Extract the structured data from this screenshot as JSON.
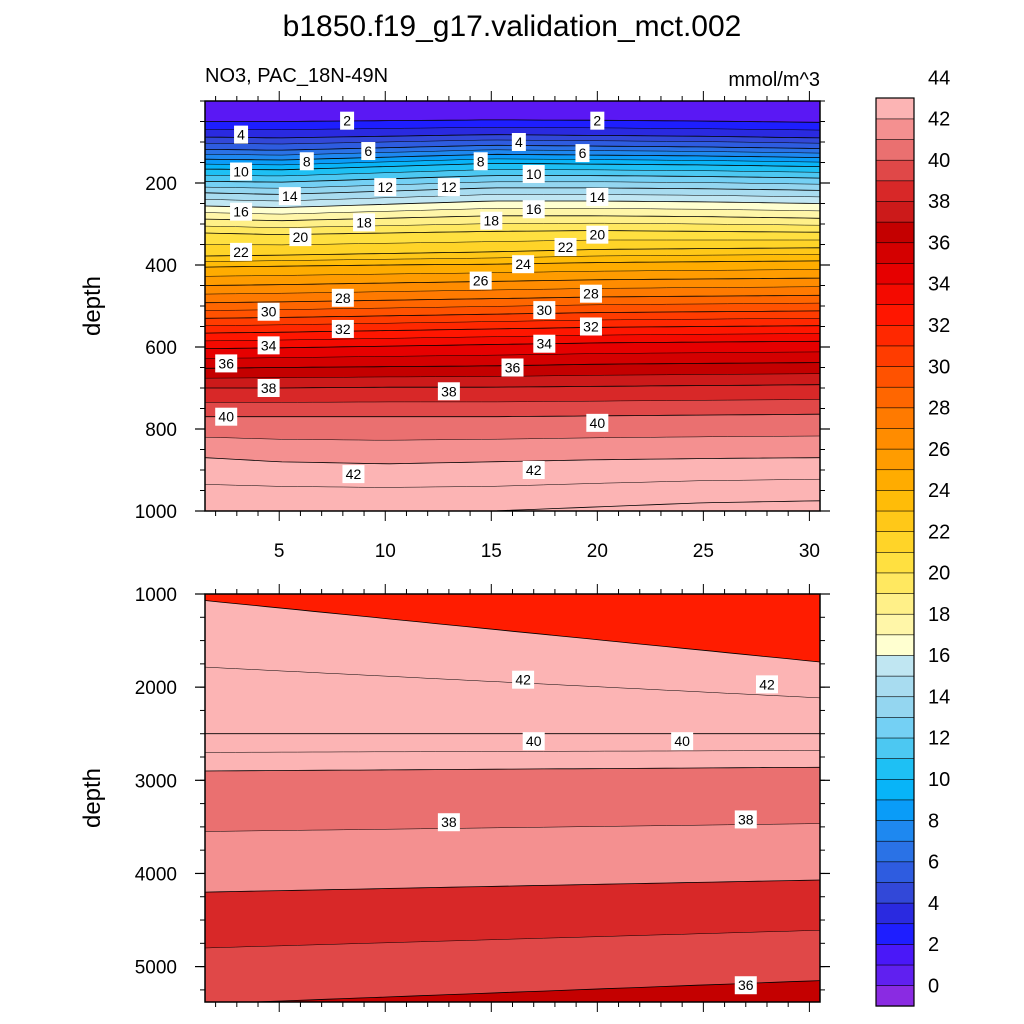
{
  "chart_data": [
    {
      "type": "heatmap",
      "title": "b1850.f19_g17.validation_mct.002",
      "subtitle_left": "NO3, PAC_18N-49N",
      "subtitle_right": "mmol/m^3",
      "xlabel": "",
      "ylabel": "depth",
      "xlim": [
        1.5,
        30.5
      ],
      "ylim": [
        1000,
        0
      ],
      "x_ticks": [
        5,
        10,
        15,
        20,
        25,
        30
      ],
      "y_ticks": [
        200,
        400,
        600,
        800,
        1000
      ],
      "x": [
        1.5,
        5,
        10,
        15,
        20,
        25,
        30.5
      ],
      "contour_depths": [
        {
          "level": 2,
          "depth": [
            50,
            50,
            48,
            46,
            47,
            49,
            52
          ]
        },
        {
          "level": 4,
          "depth": [
            88,
            90,
            86,
            82,
            84,
            86,
            90
          ]
        },
        {
          "level": 6,
          "depth": [
            118,
            120,
            114,
            108,
            110,
            112,
            116
          ]
        },
        {
          "level": 8,
          "depth": [
            142,
            144,
            137,
            130,
            132,
            134,
            138
          ]
        },
        {
          "level": 10,
          "depth": [
            166,
            168,
            160,
            152,
            154,
            156,
            160
          ]
        },
        {
          "level": 12,
          "depth": [
            196,
            198,
            190,
            182,
            182,
            184,
            188
          ]
        },
        {
          "level": 14,
          "depth": [
            224,
            228,
            220,
            212,
            212,
            214,
            218
          ]
        },
        {
          "level": 16,
          "depth": [
            256,
            260,
            252,
            244,
            244,
            246,
            250
          ]
        },
        {
          "level": 18,
          "depth": [
            288,
            292,
            286,
            280,
            280,
            282,
            286
          ]
        },
        {
          "level": 20,
          "depth": [
            322,
            326,
            322,
            318,
            316,
            318,
            320
          ]
        },
        {
          "level": 22,
          "depth": [
            378,
            376,
            372,
            368,
            362,
            360,
            358
          ]
        },
        {
          "level": 24,
          "depth": [
            405,
            403,
            400,
            398,
            394,
            392,
            390
          ]
        },
        {
          "level": 26,
          "depth": [
            450,
            448,
            444,
            440,
            436,
            434,
            432
          ]
        },
        {
          "level": 28,
          "depth": [
            492,
            490,
            486,
            482,
            478,
            476,
            474
          ]
        },
        {
          "level": 30,
          "depth": [
            530,
            528,
            524,
            520,
            516,
            514,
            512
          ]
        },
        {
          "level": 32,
          "depth": [
            566,
            564,
            560,
            556,
            552,
            550,
            548
          ]
        },
        {
          "level": 34,
          "depth": [
            604,
            602,
            598,
            594,
            590,
            588,
            586
          ]
        },
        {
          "level": 36,
          "depth": [
            652,
            650,
            648,
            646,
            642,
            640,
            638
          ]
        },
        {
          "level": 38,
          "depth": [
            700,
            700,
            698,
            698,
            696,
            694,
            692
          ]
        },
        {
          "level": 40,
          "depth": [
            770,
            770,
            770,
            770,
            768,
            766,
            764
          ]
        },
        {
          "level": 42,
          "depth": [
            870,
            880,
            885,
            880,
            875,
            872,
            870
          ]
        },
        {
          "level": 44,
          "depth": [
            1000,
            1000,
            1000,
            1000,
            990,
            980,
            975
          ]
        }
      ],
      "contour_labels": [
        {
          "x": 3.2,
          "depth": 82,
          "text": "4"
        },
        {
          "x": 8.2,
          "depth": 48,
          "text": "2"
        },
        {
          "x": 20.0,
          "depth": 48,
          "text": "2"
        },
        {
          "x": 16.3,
          "depth": 100,
          "text": "4"
        },
        {
          "x": 9.2,
          "depth": 122,
          "text": "6"
        },
        {
          "x": 19.3,
          "depth": 127,
          "text": "6"
        },
        {
          "x": 6.3,
          "depth": 147,
          "text": "8"
        },
        {
          "x": 14.5,
          "depth": 147,
          "text": "8"
        },
        {
          "x": 3.2,
          "depth": 172,
          "text": "10"
        },
        {
          "x": 17.0,
          "depth": 178,
          "text": "10"
        },
        {
          "x": 10.0,
          "depth": 210,
          "text": "12"
        },
        {
          "x": 13.0,
          "depth": 210,
          "text": "12"
        },
        {
          "x": 5.5,
          "depth": 232,
          "text": "14"
        },
        {
          "x": 20.0,
          "depth": 234,
          "text": "14"
        },
        {
          "x": 3.2,
          "depth": 270,
          "text": "16"
        },
        {
          "x": 17.0,
          "depth": 264,
          "text": "16"
        },
        {
          "x": 9.0,
          "depth": 296,
          "text": "18"
        },
        {
          "x": 15.0,
          "depth": 292,
          "text": "18"
        },
        {
          "x": 6.0,
          "depth": 332,
          "text": "20"
        },
        {
          "x": 20.0,
          "depth": 326,
          "text": "20"
        },
        {
          "x": 3.2,
          "depth": 368,
          "text": "22"
        },
        {
          "x": 18.5,
          "depth": 356,
          "text": "22"
        },
        {
          "x": 16.5,
          "depth": 398,
          "text": "24"
        },
        {
          "x": 14.5,
          "depth": 438,
          "text": "26"
        },
        {
          "x": 8.0,
          "depth": 480,
          "text": "28"
        },
        {
          "x": 19.7,
          "depth": 470,
          "text": "28"
        },
        {
          "x": 4.5,
          "depth": 514,
          "text": "30"
        },
        {
          "x": 17.5,
          "depth": 510,
          "text": "30"
        },
        {
          "x": 8.0,
          "depth": 556,
          "text": "32"
        },
        {
          "x": 19.7,
          "depth": 550,
          "text": "32"
        },
        {
          "x": 4.5,
          "depth": 596,
          "text": "34"
        },
        {
          "x": 17.5,
          "depth": 592,
          "text": "34"
        },
        {
          "x": 2.5,
          "depth": 640,
          "text": "36"
        },
        {
          "x": 16.0,
          "depth": 650,
          "text": "36"
        },
        {
          "x": 4.5,
          "depth": 700,
          "text": "38"
        },
        {
          "x": 13.0,
          "depth": 708,
          "text": "38"
        },
        {
          "x": 2.5,
          "depth": 770,
          "text": "40"
        },
        {
          "x": 20.0,
          "depth": 785,
          "text": "40"
        },
        {
          "x": 8.5,
          "depth": 910,
          "text": "42"
        },
        {
          "x": 17.0,
          "depth": 900,
          "text": "42"
        }
      ]
    },
    {
      "type": "heatmap",
      "xlabel": "",
      "ylabel": "depth",
      "xlim": [
        1.5,
        30.5
      ],
      "ylim": [
        5380,
        1000
      ],
      "y_ticks": [
        1000,
        2000,
        3000,
        4000,
        5000
      ],
      "x": [
        1.5,
        30.5
      ],
      "contour_depths": [
        {
          "level": 44,
          "depth": [
            1070,
            1730
          ]
        },
        {
          "level": 42,
          "depth": [
            2500,
            2500
          ]
        },
        {
          "level": 40,
          "depth": [
            2900,
            2860
          ]
        },
        {
          "level": 38,
          "depth": [
            4200,
            4070
          ]
        },
        {
          "level": 36,
          "depth": [
            5400,
            5150
          ]
        }
      ],
      "contour_labels": [
        {
          "x": 16.5,
          "depth": 1920,
          "text": "42"
        },
        {
          "x": 28.0,
          "depth": 1970,
          "text": "42"
        },
        {
          "x": 17.0,
          "depth": 2580,
          "text": "40"
        },
        {
          "x": 24.0,
          "depth": 2580,
          "text": "40"
        },
        {
          "x": 13.0,
          "depth": 3450,
          "text": "38"
        },
        {
          "x": 27.0,
          "depth": 3420,
          "text": "38"
        },
        {
          "x": 27.0,
          "depth": 5200,
          "text": "36"
        }
      ]
    }
  ],
  "colorbar": {
    "tick_labels": [
      "0",
      "2",
      "4",
      "6",
      "8",
      "10",
      "12",
      "14",
      "16",
      "18",
      "20",
      "22",
      "24",
      "26",
      "28",
      "30",
      "32",
      "34",
      "36",
      "38",
      "40",
      "42",
      "44"
    ],
    "colors": [
      "#8a2be2",
      "#6020f0",
      "#4a18f8",
      "#1e1eff",
      "#2a2ae0",
      "#3248d8",
      "#2e5ce0",
      "#2a72e6",
      "#1e88f0",
      "#0a9cf8",
      "#08b4f8",
      "#1ec0f4",
      "#4cc8f2",
      "#74d0f4",
      "#94d6f0",
      "#a8dcf0",
      "#c0e6f2",
      "#ffffd0",
      "#fff6a8",
      "#fff088",
      "#ffe860",
      "#ffe040",
      "#ffd428",
      "#ffc818",
      "#ffbc08",
      "#ffac00",
      "#ff9c00",
      "#ff8c00",
      "#ff7a00",
      "#ff6600",
      "#ff5200",
      "#ff3c00",
      "#ff2800",
      "#ff1600",
      "#f40a00",
      "#e60000",
      "#d40000",
      "#c40000",
      "#cc1a1a",
      "#d82828",
      "#e04848",
      "#ea7070",
      "#f49090",
      "#fcb4b4"
    ]
  }
}
